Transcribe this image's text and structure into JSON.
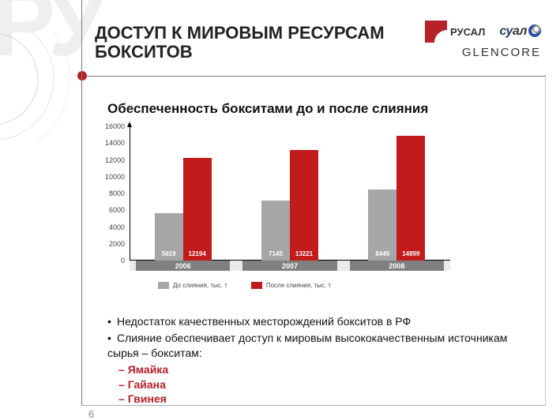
{
  "header": {
    "title": "ДОСТУП К МИРОВЫМ РЕСУРСАМ БОКСИТОВ",
    "logos": {
      "rusal": "РУСАЛ",
      "sual_part1": "су",
      "sual_part2": "ал",
      "glencore": "GLENCORE"
    },
    "accent_color": "#b6212a"
  },
  "subtitle": "Обеспеченность бокситами до и после слияния",
  "chart": {
    "type": "bar",
    "ylim": [
      0,
      16000
    ],
    "yticks": [
      0,
      2000,
      4000,
      6000,
      8000,
      10000,
      12000,
      14000,
      16000
    ],
    "ytick_labels_first": "▸6000",
    "categories": [
      "2006",
      "2007",
      "2008"
    ],
    "series": [
      {
        "name": "До слияния, тыс. т",
        "color": "#a6a6a6",
        "values": [
          5619,
          7145,
          8449
        ],
        "labels": [
          "5619",
          "7145",
          "8449"
        ]
      },
      {
        "name": "После слияния, тыс. т",
        "color": "#c11b1b",
        "values": [
          12194,
          13221,
          14899
        ],
        "labels": [
          "12194",
          "13221",
          "14899"
        ]
      }
    ],
    "xaxis_band_color": "#808080",
    "plot_area_color": "#ffffff",
    "axis_fontsize": 9
  },
  "bullets": {
    "items": [
      "Недостаток качественных месторождений бокситов в РФ",
      "Слияние обеспечивает доступ к мировым высококачественным источникам сырья – бокситам:"
    ],
    "sub_items": [
      "Ямайка",
      "Гайана",
      "Гвинея"
    ],
    "sub_color": "#b6212a"
  },
  "page_number": "6",
  "watermark": "РУ"
}
